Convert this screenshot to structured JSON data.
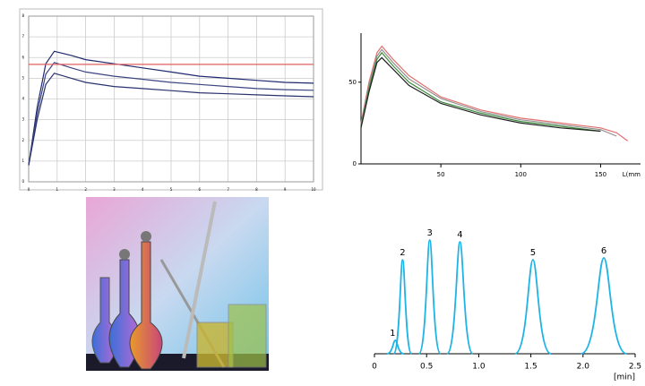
{
  "chart_data": [
    {
      "type": "line",
      "grid": true,
      "x": [
        0,
        0.3,
        0.6,
        0.9,
        1.5,
        2,
        3,
        4,
        5,
        6,
        7,
        8,
        9,
        10
      ],
      "xlim": [
        0,
        10
      ],
      "ylim": [
        0,
        8
      ],
      "xticks": [
        0,
        1,
        2,
        3,
        4,
        5,
        6,
        7,
        8,
        9,
        10
      ],
      "yticks": [
        0,
        1,
        2,
        3,
        4,
        5,
        6,
        7,
        8
      ],
      "series": [
        {
          "color": "#1f2a6e",
          "values": [
            0.8,
            3.6,
            5.7,
            6.3,
            6.1,
            5.9,
            5.7,
            5.5,
            5.3,
            5.1,
            5.0,
            4.9,
            4.8,
            4.76
          ]
        },
        {
          "color": "#3c4580",
          "values": [
            0.8,
            3.3,
            5.2,
            5.76,
            5.5,
            5.3,
            5.1,
            4.95,
            4.8,
            4.7,
            4.6,
            4.5,
            4.45,
            4.42
          ]
        },
        {
          "color": "#2a336e",
          "values": [
            0.8,
            3.0,
            4.7,
            5.24,
            5.0,
            4.8,
            4.6,
            4.5,
            4.4,
            4.3,
            4.25,
            4.2,
            4.15,
            4.11
          ]
        },
        {
          "color": "#e06060",
          "values": [
            5.67,
            5.67,
            5.67,
            5.67,
            5.67,
            5.67,
            5.67,
            5.67,
            5.67,
            5.67,
            5.67,
            5.67,
            5.67,
            5.67
          ]
        }
      ]
    },
    {
      "type": "line",
      "grid": false,
      "xlabel": "L(mm",
      "x": [
        0,
        5,
        10,
        13,
        20,
        30,
        50,
        75,
        100,
        125,
        150,
        160,
        167
      ],
      "xlim": [
        0,
        175
      ],
      "ylim": [
        0,
        80
      ],
      "xticks": [
        50,
        100,
        150
      ],
      "yticks": [
        0,
        50
      ],
      "series": [
        {
          "color": "#e07070",
          "values": [
            25,
            50,
            68,
            72,
            64,
            54,
            41,
            33,
            28,
            25,
            22,
            19,
            14
          ]
        },
        {
          "color": "#909090",
          "values": [
            24,
            48,
            66,
            70,
            62,
            52,
            40,
            32,
            27,
            24,
            21,
            17,
            null
          ]
        },
        {
          "color": "#3a8a3a",
          "values": [
            23,
            46,
            64,
            68,
            60,
            50,
            38,
            31,
            26,
            23,
            20,
            null,
            null
          ]
        },
        {
          "color": "#202020",
          "values": [
            22,
            44,
            62,
            65,
            58,
            48,
            37,
            30,
            25,
            22,
            20,
            null,
            null
          ]
        }
      ]
    },
    {
      "type": "peaks",
      "color": "#1fb3e6",
      "xlabel": "[min]",
      "labels": [
        "1",
        "2",
        "3",
        "4",
        "5",
        "6"
      ],
      "x": [
        0.2,
        0.27,
        0.53,
        0.82,
        1.52,
        2.2
      ],
      "values": [
        15,
        105,
        127,
        125,
        105,
        107
      ],
      "xlim": [
        0,
        2.5
      ],
      "ylim": [
        0,
        140
      ],
      "xticks": [
        0,
        {
          "value": 0.5,
          "label": "0.5"
        },
        {
          "value": 1,
          "label": "1.0"
        },
        1.5,
        {
          "value": 2,
          "label": "2.0"
        },
        2.5
      ]
    }
  ]
}
